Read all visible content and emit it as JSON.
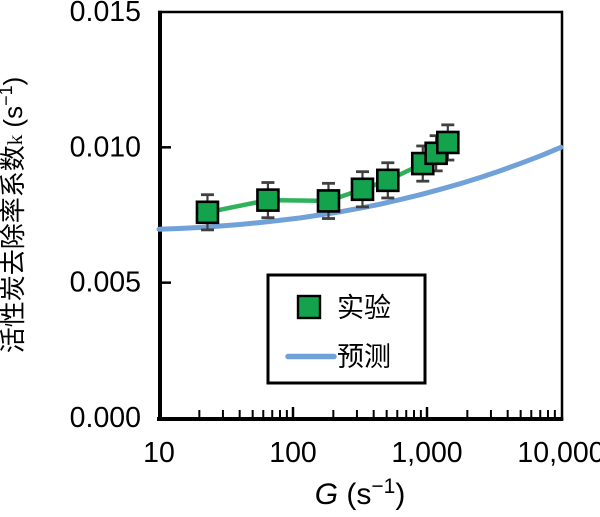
{
  "chart_data": {
    "type": "line",
    "title": "",
    "background": "#ffffff",
    "frame_color": "#000000",
    "x_axis": {
      "symbol": "G",
      "unit_prefix": " (s",
      "unit_sup": "−1",
      "unit_suffix": ")",
      "scale": "log",
      "min": 10,
      "max": 10000,
      "tick_values": [
        10,
        100,
        1000,
        10000
      ],
      "tick_labels": [
        "10",
        "100",
        "1,000",
        "10,000"
      ],
      "minor_tick_multipliers": [
        2,
        3,
        4,
        5,
        6,
        7,
        8,
        9
      ]
    },
    "y_axis": {
      "title_text": "活性炭去除率系数",
      "symbol": "k",
      "unit_prefix": " (s",
      "unit_sup": "−1",
      "unit_suffix": ")",
      "scale": "linear",
      "min": 0.0,
      "max": 0.015,
      "tick_values": [
        0,
        0.005,
        0.01,
        0.015
      ],
      "tick_labels": [
        "0.000",
        "0.005",
        "0.010",
        "0.015"
      ]
    },
    "series": [
      {
        "name": "实验",
        "type": "scatter",
        "marker": "square",
        "marker_fill": "#12a34c",
        "marker_edge": "#000000",
        "connect_line_color": "#2eb25b",
        "error_bar_color": "#404040",
        "x": [
          23,
          65,
          184,
          330,
          510,
          930,
          1170,
          1430
        ],
        "y": [
          0.0076,
          0.00805,
          0.00802,
          0.00845,
          0.00878,
          0.0094,
          0.00978,
          0.01018
        ],
        "yerr": 0.00065
      },
      {
        "name": "预测",
        "type": "line",
        "line_color": "#70a1d9",
        "x": [
          10,
          14,
          20,
          28,
          40,
          56,
          79,
          112,
          158,
          224,
          316,
          447,
          631,
          891,
          1259,
          1778,
          2512,
          3548,
          5012,
          7079,
          10000
        ],
        "y": [
          0.00697,
          0.007,
          0.00704,
          0.00709,
          0.00715,
          0.00722,
          0.0073,
          0.00739,
          0.0075,
          0.00762,
          0.00775,
          0.0079,
          0.00807,
          0.00825,
          0.00845,
          0.00866,
          0.00889,
          0.00914,
          0.00941,
          0.00969,
          0.01
        ]
      }
    ],
    "legend": {
      "position": "inside-bottom-center",
      "border_color": "#000000",
      "entries": [
        {
          "label": "实验",
          "swatch": "square"
        },
        {
          "label": "预测",
          "swatch": "line"
        }
      ]
    }
  }
}
